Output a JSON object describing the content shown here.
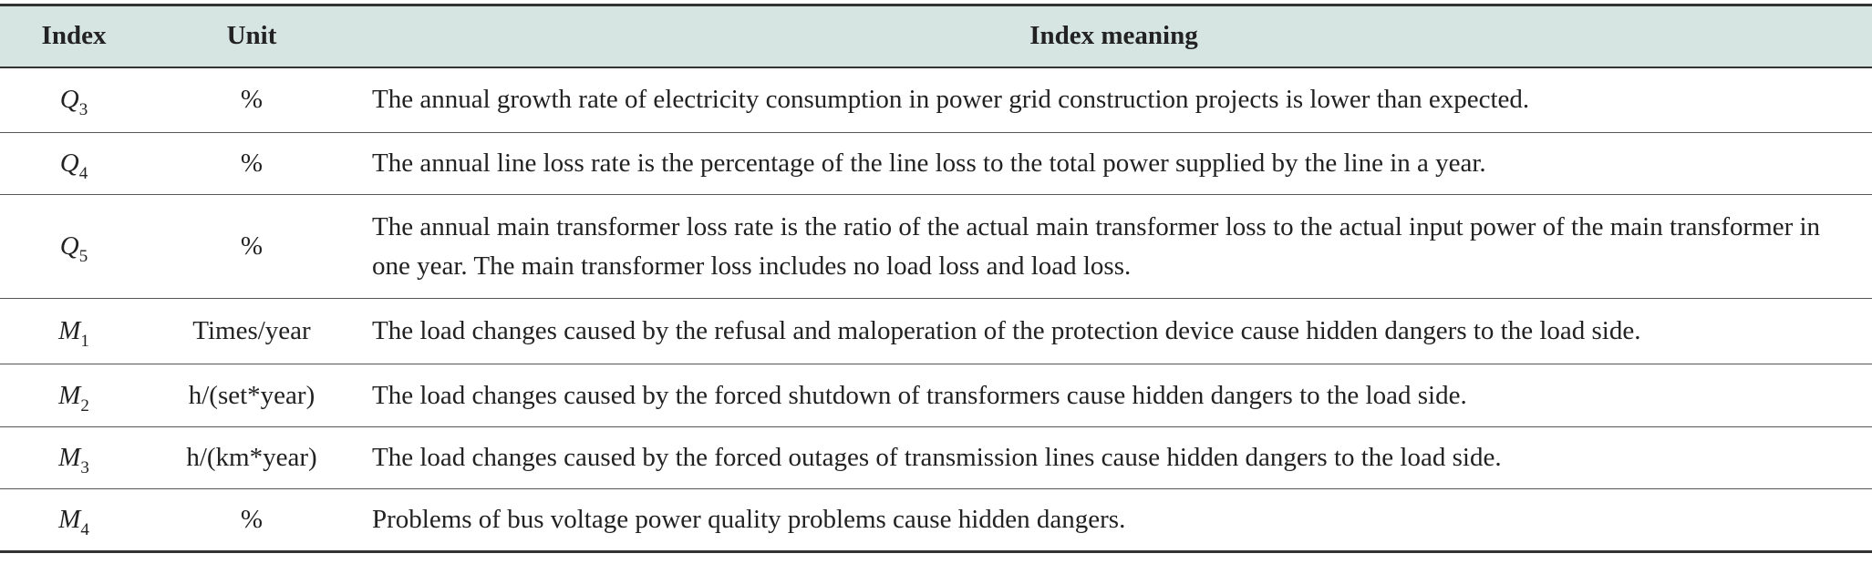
{
  "table": {
    "header": [
      "Index",
      "Unit",
      "Index meaning"
    ],
    "rows": [
      {
        "symbol": "Q",
        "sub": "3",
        "unit": "%",
        "meaning": "The annual growth rate of electricity consumption in power grid construction projects is lower than expected."
      },
      {
        "symbol": "Q",
        "sub": "4",
        "unit": "%",
        "meaning": "The annual line loss rate is the percentage of the line loss to the total power supplied by the line in a year."
      },
      {
        "symbol": "Q",
        "sub": "5",
        "unit": "%",
        "meaning": "The annual main transformer loss rate is the ratio of the actual main transformer loss to the actual input power of the main transformer in one year. The main transformer loss includes no load loss and load loss."
      },
      {
        "symbol": "M",
        "sub": "1",
        "unit": "Times/year",
        "meaning": "The load changes caused by the refusal and maloperation of the protection device cause hidden dangers to the load side."
      },
      {
        "symbol": "M",
        "sub": "2",
        "unit": "h/(set*year)",
        "meaning": "The load changes caused by the forced shutdown of transformers cause hidden dangers to the load side."
      },
      {
        "symbol": "M",
        "sub": "3",
        "unit": "h/(km*year)",
        "meaning": "The load changes caused by the forced outages of transmission lines cause hidden dangers to the load side."
      },
      {
        "symbol": "M",
        "sub": "4",
        "unit": "%",
        "meaning": "Problems of bus voltage power quality problems cause hidden dangers."
      }
    ]
  }
}
